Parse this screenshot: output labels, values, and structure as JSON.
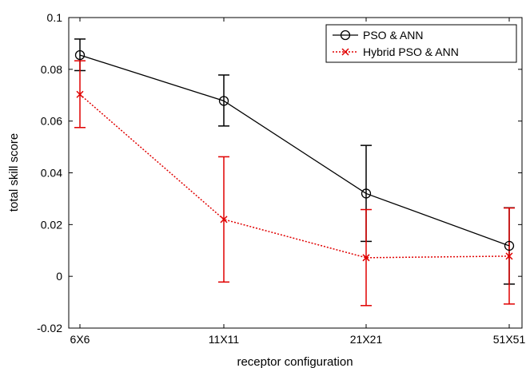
{
  "chart_data": {
    "type": "line",
    "title": "",
    "xlabel": "receptor configuration",
    "ylabel": "total skill score",
    "categories": [
      "6X6",
      "11X11",
      "21X21",
      "51X51"
    ],
    "ylim": [
      -0.02,
      0.1
    ],
    "yticks": [
      -0.02,
      0,
      0.02,
      0.04,
      0.06,
      0.08,
      0.1
    ],
    "ytick_labels": [
      "-0.02",
      "0",
      "0.02",
      "0.04",
      "0.06",
      "0.08",
      "0.1"
    ],
    "grid": false,
    "legend_position": "top-right",
    "series": [
      {
        "name": "PSO & ANN",
        "color": "#000000",
        "line_style": "solid",
        "marker": "circle",
        "values": [
          0.0855,
          0.0678,
          0.032,
          0.0118
        ],
        "err_low": [
          0.0795,
          0.0581,
          0.0135,
          -0.003
        ],
        "err_high": [
          0.0917,
          0.0778,
          0.0506,
          0.0265
        ]
      },
      {
        "name": "Hybrid PSO & ANN",
        "color": "#e00000",
        "line_style": "dotted",
        "marker": "x",
        "values": [
          0.0703,
          0.022,
          0.0072,
          0.0078
        ],
        "err_low": [
          0.0575,
          -0.0022,
          -0.0113,
          -0.0107
        ],
        "err_high": [
          0.0833,
          0.0462,
          0.0258,
          0.0264
        ]
      }
    ]
  }
}
